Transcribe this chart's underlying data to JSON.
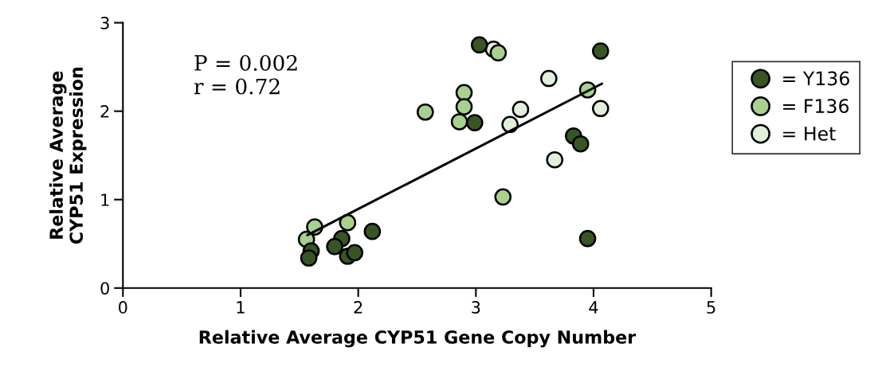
{
  "chart_data": {
    "type": "scatter",
    "xlabel": "Relative Average CYP51 Gene Copy Number",
    "ylabel": "Relative Average\nCYP51 Expression",
    "xlim": [
      0,
      5
    ],
    "ylim": [
      0,
      3
    ],
    "xticks": [
      0,
      1,
      2,
      3,
      4,
      5
    ],
    "yticks": [
      0,
      1,
      2,
      3
    ],
    "grid": false,
    "legend": "right",
    "annotations": [
      "P = 0.002\nr = 0.72"
    ],
    "series": [
      {
        "name": "= Y136",
        "color": "#375623",
        "marker": "circle",
        "x": [
          3.03,
          4.06,
          2.99,
          3.83,
          3.89,
          3.95,
          2.12,
          1.86,
          1.8,
          1.91,
          1.97,
          1.6,
          1.58
        ],
        "values": [
          2.75,
          2.68,
          1.87,
          1.72,
          1.63,
          0.56,
          0.64,
          0.56,
          0.47,
          0.36,
          0.4,
          0.42,
          0.34
        ]
      },
      {
        "name": "= F136",
        "color": "#a9d18e",
        "marker": "circle",
        "x": [
          2.57,
          2.9,
          2.9,
          2.86,
          3.23,
          3.19,
          1.63,
          1.91,
          1.56,
          3.95
        ],
        "values": [
          1.99,
          2.21,
          2.05,
          1.88,
          1.03,
          2.66,
          0.69,
          0.74,
          0.55,
          2.24
        ]
      },
      {
        "name": "= Het",
        "color": "#e2efda",
        "marker": "circle",
        "x": [
          3.15,
          3.62,
          3.38,
          3.29,
          3.67,
          4.06
        ],
        "values": [
          2.7,
          2.37,
          2.02,
          1.85,
          1.45,
          2.03
        ]
      },
      {
        "type": "line",
        "color": "#000000",
        "marker": "none",
        "x": [
          1.57,
          4.07
        ],
        "values": [
          0.6,
          2.31
        ]
      }
    ]
  }
}
